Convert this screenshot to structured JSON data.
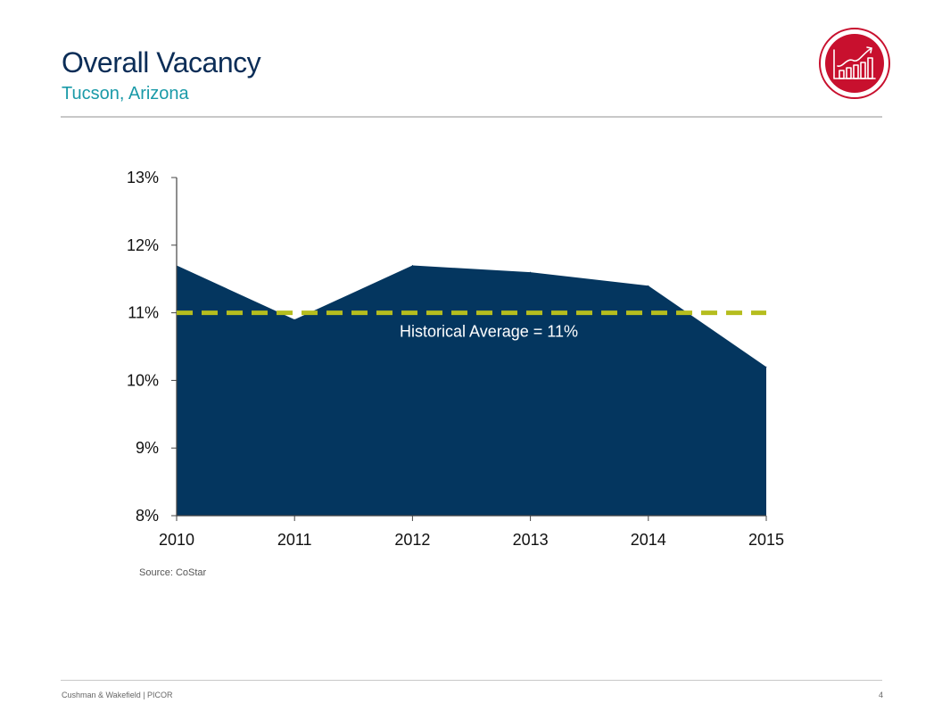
{
  "header": {
    "title": "Overall Vacancy",
    "subtitle": "Tucson, Arizona",
    "icon": "chart-growth-icon"
  },
  "chart_data": {
    "type": "area",
    "x": [
      "2010",
      "2011",
      "2012",
      "2013",
      "2014",
      "2015"
    ],
    "series": [
      {
        "values": [
          11.7,
          10.9,
          11.7,
          11.6,
          11.4,
          10.2
        ]
      }
    ],
    "ylim": [
      8,
      13
    ],
    "yticks": [
      8,
      9,
      10,
      11,
      12,
      13
    ],
    "ytick_labels": [
      "8%",
      "9%",
      "10%",
      "11%",
      "12%",
      "13%"
    ],
    "grid": false,
    "reference_line": {
      "value": 11,
      "label": "Historical Average = 11%"
    },
    "colors": {
      "area": "#04365f",
      "reference": "#b5bd1e"
    }
  },
  "source": "Source:  CoStar",
  "footer": {
    "left": "Cushman & Wakefield | PICOR",
    "page": "4"
  },
  "colors": {
    "title": "#0b2d57",
    "subtitle": "#1a9aa8",
    "badge": "#c8102e"
  }
}
